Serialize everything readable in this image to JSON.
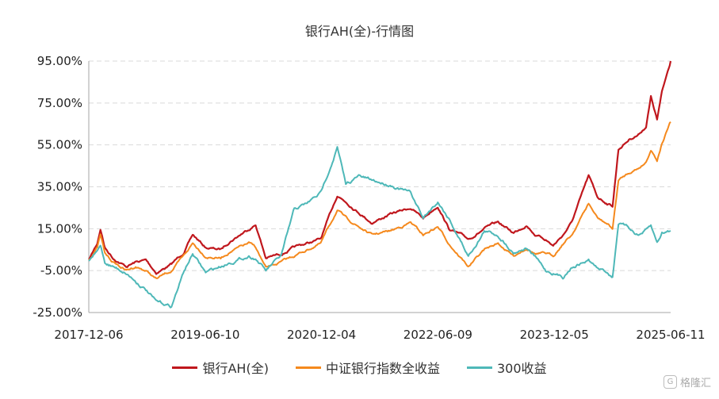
{
  "chart_data": {
    "type": "line",
    "title": "银行AH(全)-行情图",
    "xlabel": "",
    "ylabel": "",
    "x_start": "2017-12-06",
    "x_end": "2025-06-11",
    "x_ticks": [
      "2017-12-06",
      "2019-06-10",
      "2020-12-04",
      "2022-06-09",
      "2023-12-05",
      "2025-06-11"
    ],
    "y_ticks": [
      "95.00%",
      "75.00%",
      "55.00%",
      "35.00%",
      "15.00%",
      "-5.00%",
      "-25.00%"
    ],
    "ylim": [
      -25,
      95
    ],
    "y_unit": "%",
    "grid": "horizontal dashed",
    "legend_position": "bottom",
    "series": [
      {
        "name": "银行AH(全)",
        "color": "#c0171d",
        "points": [
          [
            "2017-12-06",
            0
          ],
          [
            "2018-01-15",
            8
          ],
          [
            "2018-01-30",
            15
          ],
          [
            "2018-02-20",
            6
          ],
          [
            "2018-04-01",
            1
          ],
          [
            "2018-06-01",
            -3
          ],
          [
            "2018-07-15",
            -1
          ],
          [
            "2018-09-01",
            0
          ],
          [
            "2018-10-20",
            -6
          ],
          [
            "2018-12-31",
            -2
          ],
          [
            "2019-03-01",
            4
          ],
          [
            "2019-04-10",
            12
          ],
          [
            "2019-06-10",
            6
          ],
          [
            "2019-08-20",
            5
          ],
          [
            "2019-10-01",
            9
          ],
          [
            "2019-12-31",
            15
          ],
          [
            "2020-02-01",
            17
          ],
          [
            "2020-03-20",
            1
          ],
          [
            "2020-06-01",
            3
          ],
          [
            "2020-08-01",
            6
          ],
          [
            "2020-10-01",
            8
          ],
          [
            "2020-12-04",
            10
          ],
          [
            "2021-02-20",
            31
          ],
          [
            "2021-04-01",
            28
          ],
          [
            "2021-06-01",
            23
          ],
          [
            "2021-08-01",
            18
          ],
          [
            "2021-11-01",
            22
          ],
          [
            "2022-02-01",
            25
          ],
          [
            "2022-04-01",
            20
          ],
          [
            "2022-06-09",
            26
          ],
          [
            "2022-08-01",
            15
          ],
          [
            "2022-10-31",
            10
          ],
          [
            "2023-01-15",
            15
          ],
          [
            "2023-03-20",
            18
          ],
          [
            "2023-06-01",
            13
          ],
          [
            "2023-08-01",
            17
          ],
          [
            "2023-09-15",
            12
          ],
          [
            "2023-10-31",
            10
          ],
          [
            "2023-12-05",
            7
          ],
          [
            "2024-01-20",
            12
          ],
          [
            "2024-03-01",
            18
          ],
          [
            "2024-05-20",
            40
          ],
          [
            "2024-07-01",
            30
          ],
          [
            "2024-08-20",
            27
          ],
          [
            "2024-09-10",
            26
          ],
          [
            "2024-10-08",
            53
          ],
          [
            "2024-12-01",
            58
          ],
          [
            "2025-01-10",
            60
          ],
          [
            "2025-02-15",
            64
          ],
          [
            "2025-03-10",
            78
          ],
          [
            "2025-04-08",
            67
          ],
          [
            "2025-05-01",
            80
          ],
          [
            "2025-06-11",
            95
          ]
        ]
      },
      {
        "name": "中证银行指数全收益",
        "color": "#f5891d",
        "points": [
          [
            "2017-12-06",
            0
          ],
          [
            "2018-01-15",
            6
          ],
          [
            "2018-01-30",
            12
          ],
          [
            "2018-02-20",
            3
          ],
          [
            "2018-04-01",
            -1
          ],
          [
            "2018-06-01",
            -5
          ],
          [
            "2018-07-15",
            -3
          ],
          [
            "2018-09-01",
            -5
          ],
          [
            "2018-10-20",
            -9
          ],
          [
            "2018-12-31",
            -5
          ],
          [
            "2019-03-01",
            2
          ],
          [
            "2019-04-10",
            8
          ],
          [
            "2019-06-10",
            2
          ],
          [
            "2019-08-20",
            1
          ],
          [
            "2019-10-01",
            4
          ],
          [
            "2019-12-31",
            8
          ],
          [
            "2020-02-01",
            6
          ],
          [
            "2020-03-20",
            -4
          ],
          [
            "2020-06-01",
            -1
          ],
          [
            "2020-08-01",
            2
          ],
          [
            "2020-10-01",
            5
          ],
          [
            "2020-12-04",
            8
          ],
          [
            "2021-02-20",
            24
          ],
          [
            "2021-04-01",
            20
          ],
          [
            "2021-06-01",
            16
          ],
          [
            "2021-08-01",
            12
          ],
          [
            "2021-11-01",
            14
          ],
          [
            "2022-02-01",
            18
          ],
          [
            "2022-04-01",
            12
          ],
          [
            "2022-06-09",
            16
          ],
          [
            "2022-08-01",
            8
          ],
          [
            "2022-10-31",
            -3
          ],
          [
            "2023-01-15",
            5
          ],
          [
            "2023-03-20",
            8
          ],
          [
            "2023-06-01",
            2
          ],
          [
            "2023-08-01",
            6
          ],
          [
            "2023-09-15",
            3
          ],
          [
            "2023-10-31",
            3
          ],
          [
            "2023-12-05",
            2
          ],
          [
            "2024-01-20",
            8
          ],
          [
            "2024-03-01",
            12
          ],
          [
            "2024-05-20",
            27
          ],
          [
            "2024-07-01",
            20
          ],
          [
            "2024-08-20",
            17
          ],
          [
            "2024-09-10",
            15
          ],
          [
            "2024-10-08",
            38
          ],
          [
            "2024-12-01",
            42
          ],
          [
            "2025-01-10",
            44
          ],
          [
            "2025-02-15",
            47
          ],
          [
            "2025-03-10",
            53
          ],
          [
            "2025-04-08",
            48
          ],
          [
            "2025-05-01",
            56
          ],
          [
            "2025-06-11",
            66
          ]
        ]
      },
      {
        "name": "300收益",
        "color": "#4eb8b8",
        "points": [
          [
            "2017-12-06",
            0
          ],
          [
            "2018-01-15",
            4
          ],
          [
            "2018-01-30",
            7
          ],
          [
            "2018-02-20",
            -1
          ],
          [
            "2018-04-01",
            -3
          ],
          [
            "2018-06-01",
            -6
          ],
          [
            "2018-07-15",
            -10
          ],
          [
            "2018-09-01",
            -14
          ],
          [
            "2018-10-20",
            -20
          ],
          [
            "2018-12-31",
            -22
          ],
          [
            "2019-03-01",
            -5
          ],
          [
            "2019-04-10",
            3
          ],
          [
            "2019-06-10",
            -6
          ],
          [
            "2019-08-20",
            -3
          ],
          [
            "2019-10-01",
            -1
          ],
          [
            "2019-12-31",
            2
          ],
          [
            "2020-02-01",
            1
          ],
          [
            "2020-03-20",
            -5
          ],
          [
            "2020-06-01",
            2
          ],
          [
            "2020-08-01",
            24
          ],
          [
            "2020-10-01",
            27
          ],
          [
            "2020-12-04",
            32
          ],
          [
            "2021-02-20",
            54
          ],
          [
            "2021-04-01",
            36
          ],
          [
            "2021-06-01",
            40
          ],
          [
            "2021-08-01",
            38
          ],
          [
            "2021-11-01",
            36
          ],
          [
            "2022-02-01",
            32
          ],
          [
            "2022-04-01",
            20
          ],
          [
            "2022-06-09",
            28
          ],
          [
            "2022-08-01",
            20
          ],
          [
            "2022-10-31",
            2
          ],
          [
            "2023-01-15",
            14
          ],
          [
            "2023-03-20",
            12
          ],
          [
            "2023-06-01",
            4
          ],
          [
            "2023-08-01",
            6
          ],
          [
            "2023-09-15",
            1
          ],
          [
            "2023-10-31",
            -5
          ],
          [
            "2023-12-05",
            -6
          ],
          [
            "2024-01-20",
            -8
          ],
          [
            "2024-03-01",
            -3
          ],
          [
            "2024-05-20",
            0
          ],
          [
            "2024-07-01",
            -4
          ],
          [
            "2024-08-20",
            -6
          ],
          [
            "2024-09-10",
            -8
          ],
          [
            "2024-10-08",
            18
          ],
          [
            "2024-12-01",
            15
          ],
          [
            "2025-01-10",
            12
          ],
          [
            "2025-02-15",
            14
          ],
          [
            "2025-03-10",
            16
          ],
          [
            "2025-04-08",
            8
          ],
          [
            "2025-05-01",
            13
          ],
          [
            "2025-06-11",
            14
          ]
        ]
      }
    ]
  },
  "watermark": {
    "icon": "logo-badge-icon",
    "badge": "G",
    "text": "格隆汇"
  }
}
